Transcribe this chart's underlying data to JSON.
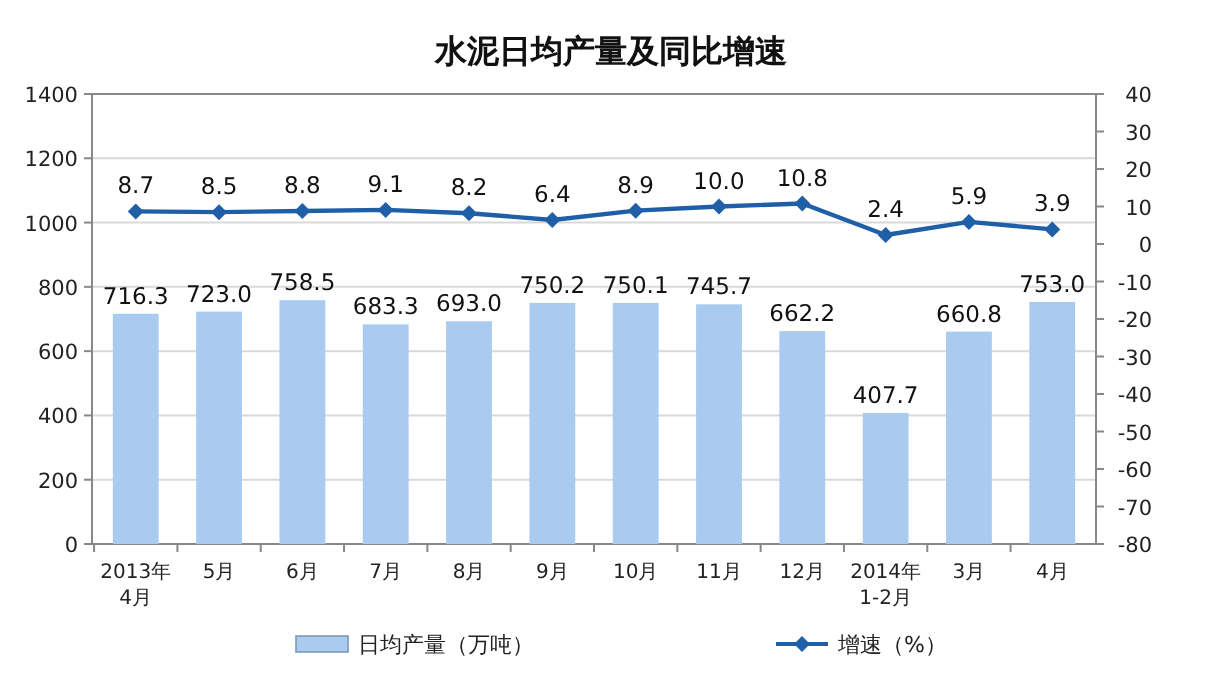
{
  "chart_data": {
    "type": "bar",
    "title": "水泥日均产量及同比增速",
    "categories": [
      "2013年\n4月",
      "5月",
      "6月",
      "7月",
      "8月",
      "9月",
      "10月",
      "11月",
      "12月",
      "2014年\n1-2月",
      "3月",
      "4月"
    ],
    "series": [
      {
        "name": "日均产量（万吨）",
        "color": "#a9cbf0",
        "values": [
          716.3,
          723.0,
          758.5,
          683.3,
          693.0,
          750.2,
          750.1,
          745.7,
          662.2,
          407.7,
          660.8,
          753.0
        ],
        "value_labels": [
          "716.3",
          "723.0",
          "758.5",
          "683.3",
          "693.0",
          "750.2",
          "750.1",
          "745.7",
          "662.2",
          "407.7",
          "660.8",
          "753.0"
        ]
      },
      {
        "name": "增速（%）",
        "type": "line",
        "axis": "y2",
        "color": "#1f5fa8",
        "marker": "diamond",
        "values": [
          8.7,
          8.5,
          8.8,
          9.1,
          8.2,
          6.4,
          8.9,
          10.0,
          10.8,
          2.4,
          5.9,
          3.9
        ],
        "value_labels": [
          "8.7",
          "8.5",
          "8.8",
          "9.1",
          "8.2",
          "6.4",
          "8.9",
          "10.0",
          "10.8",
          "2.4",
          "5.9",
          "3.9"
        ]
      }
    ],
    "ylim": [
      0,
      1400
    ],
    "yticks": [
      0,
      200,
      400,
      600,
      800,
      1000,
      1200,
      1400
    ],
    "y2lim": [
      -80,
      40
    ],
    "y2ticks": [
      -80,
      -70,
      -60,
      -50,
      -40,
      -30,
      -20,
      -10,
      0,
      10,
      20,
      30,
      40
    ],
    "grid": "y",
    "legend": "bottom"
  }
}
